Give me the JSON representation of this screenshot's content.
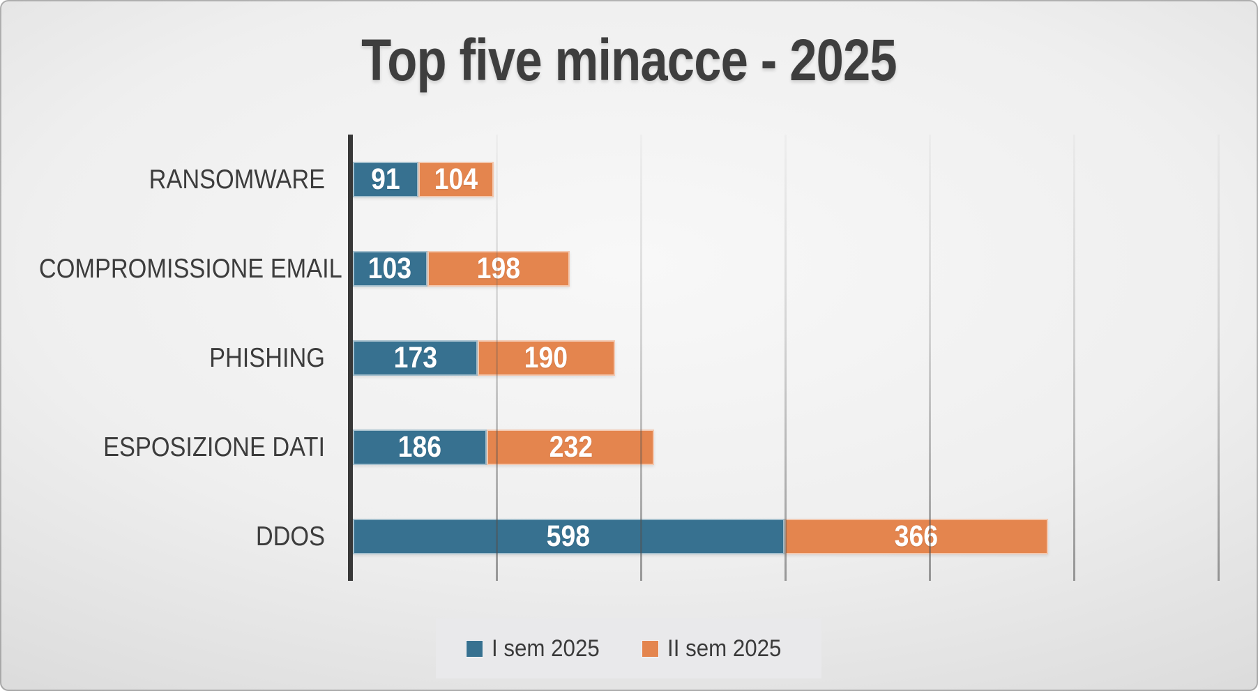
{
  "title": "Top five minacce - 2025",
  "chart_data": {
    "type": "bar",
    "orientation": "horizontal",
    "stacked": true,
    "title": "Top five minacce - 2025",
    "categories": [
      "RANSOMWARE",
      "COMPROMISSIONE EMAIL",
      "PHISHING",
      "ESPOSIZIONE DATI",
      "DDOS"
    ],
    "series": [
      {
        "name": "I sem 2025",
        "color": "#377190",
        "values": [
          91,
          103,
          173,
          186,
          598
        ]
      },
      {
        "name": "II sem 2025",
        "color": "#E4854E",
        "values": [
          104,
          198,
          190,
          232,
          366
        ]
      }
    ],
    "xlim": [
      0,
      1200
    ],
    "x_gridline_step": 200,
    "grid": "vertical-gridlines-only",
    "x_tick_labels": "none",
    "legend_position": "bottom-center",
    "value_labels": "inside-segments-white"
  },
  "colors": {
    "series_1": "#377190",
    "series_2": "#E4854E",
    "title_text": "#3e3e3e",
    "category_text": "#3c3c3c",
    "value_text": "#ffffff",
    "axis_line": "#383838",
    "gridline": "#5a5a5a",
    "legend_background": "#e9e9eb",
    "background_center": "#f8f8f8",
    "background_edge": "#c7c7c7"
  }
}
